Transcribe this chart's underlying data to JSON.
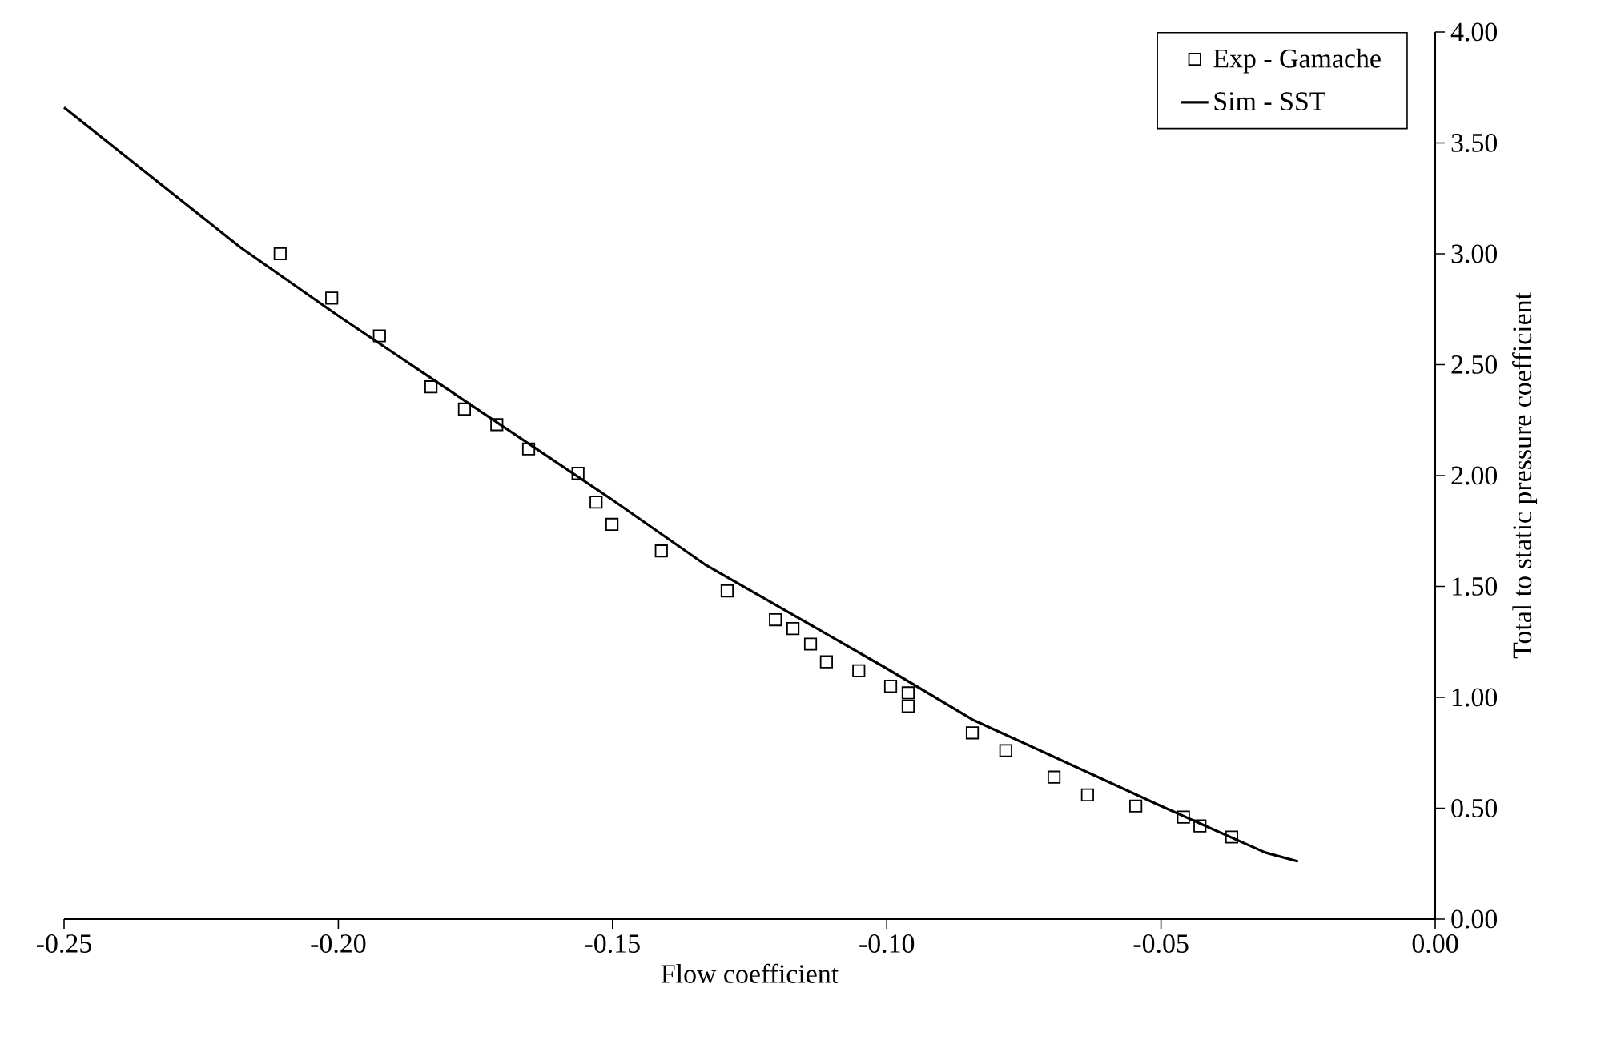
{
  "chart_data": {
    "type": "scatter",
    "xlabel": "Flow coefficient",
    "ylabel": "Total to static pressure coefficient",
    "xlim": [
      -0.25,
      0
    ],
    "ylim": [
      0,
      4
    ],
    "xticks": [
      {
        "value": -0.25,
        "label": "-0.25"
      },
      {
        "value": -0.2,
        "label": "-0.20"
      },
      {
        "value": -0.15,
        "label": "-0.15"
      },
      {
        "value": -0.1,
        "label": "-0.10"
      },
      {
        "value": -0.05,
        "label": "-0.05"
      },
      {
        "value": 0,
        "label": "0.00"
      }
    ],
    "yticks": [
      {
        "value": 0,
        "label": "0.00"
      },
      {
        "value": 0.5,
        "label": "0.50"
      },
      {
        "value": 1,
        "label": "1.00"
      },
      {
        "value": 1.5,
        "label": "1.50"
      },
      {
        "value": 2,
        "label": "2.00"
      },
      {
        "value": 2.5,
        "label": "2.50"
      },
      {
        "value": 3,
        "label": "3.00"
      },
      {
        "value": 3.5,
        "label": "3.50"
      },
      {
        "value": 4,
        "label": "4.00"
      }
    ],
    "grid": false,
    "legend": "top right",
    "series": [
      {
        "name": "Exp - Gamache",
        "color": "#000000",
        "marker": "square",
        "x": [
          -0.2106,
          -0.2012,
          -0.1925,
          -0.1831,
          -0.177,
          -0.1711,
          -0.1653,
          -0.1563,
          -0.153,
          -0.1501,
          -0.1411,
          -0.1291,
          -0.1203,
          -0.1171,
          -0.1139,
          -0.111,
          -0.1051,
          -0.0993,
          -0.0961,
          -0.0961,
          -0.0844,
          -0.0783,
          -0.0695,
          -0.0634,
          -0.0546,
          -0.0459,
          -0.0429,
          -0.0371
        ],
        "values": [
          3.0,
          2.8,
          2.63,
          2.4,
          2.3,
          2.23,
          2.12,
          2.01,
          1.88,
          1.78,
          1.66,
          1.48,
          1.35,
          1.31,
          1.24,
          1.16,
          1.12,
          1.05,
          1.02,
          0.96,
          0.84,
          0.76,
          0.64,
          0.56,
          0.51,
          0.46,
          0.42,
          0.37
        ]
      },
      {
        "name": "Sim - SST",
        "type": "line",
        "color": "#000000",
        "marker": "none",
        "line_style": "solid",
        "x": [
          -0.25,
          -0.2179,
          -0.2,
          -0.15,
          -0.1332,
          -0.1,
          -0.0844,
          -0.05,
          -0.031,
          -0.025
        ],
        "values": [
          3.66,
          3.03,
          2.72,
          1.89,
          1.6,
          1.13,
          0.9,
          0.51,
          0.3,
          0.26
        ]
      }
    ]
  }
}
